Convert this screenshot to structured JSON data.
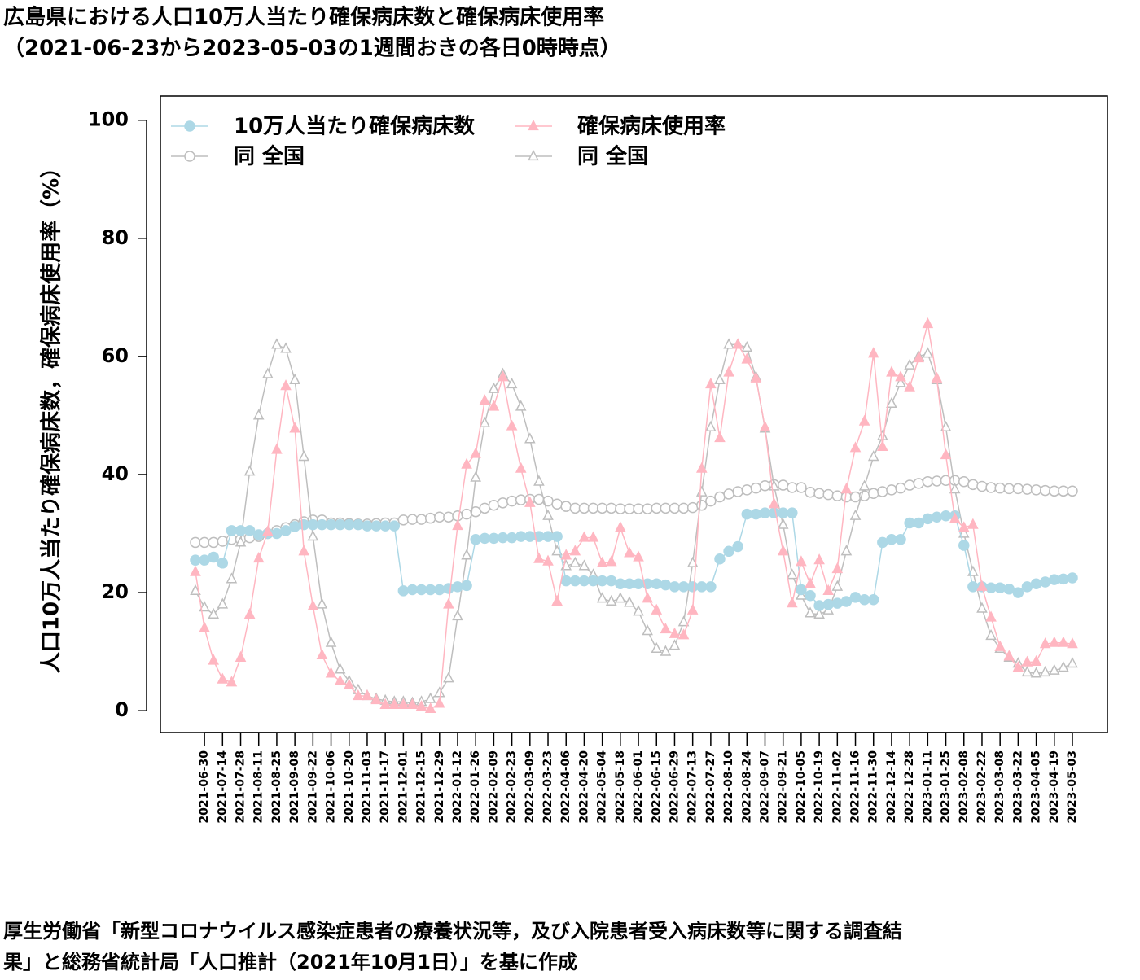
{
  "chart_data": {
    "type": "line",
    "title": "広島県における人口10万人当たり確保病床数と確保病床使用率",
    "subtitle": "（2021-06-23から2023-05-03の1週間おきの各日0時時点）",
    "y_label": "人口10万人当たり確保病床数，確保病床使用率（%）",
    "footnote": [
      "厚生労働省「新型コロナウイルス感染症患者の療養状況等，及び入院患者受入病床数等に関する調査結",
      "果」と総務省統計局「人口推計（2021年10月1日）」を基に作成"
    ],
    "categories": [
      null,
      "2021-06-30",
      null,
      "2021-07-14",
      null,
      "2021-07-28",
      null,
      "2021-08-11",
      null,
      "2021-08-25",
      null,
      "2021-09-08",
      null,
      "2021-09-22",
      null,
      "2021-10-06",
      null,
      "2021-10-20",
      null,
      "2021-11-03",
      null,
      "2021-11-17",
      null,
      "2021-12-01",
      null,
      "2021-12-15",
      null,
      "2021-12-29",
      null,
      "2022-01-12",
      null,
      "2022-01-26",
      null,
      "2022-02-09",
      null,
      "2022-02-23",
      null,
      "2022-03-09",
      null,
      "2022-03-23",
      null,
      "2022-04-06",
      null,
      "2022-04-20",
      null,
      "2022-05-04",
      null,
      "2022-05-18",
      null,
      "2022-06-01",
      null,
      "2022-06-15",
      null,
      "2022-06-29",
      null,
      "2022-07-13",
      null,
      "2022-07-27",
      null,
      "2022-08-10",
      null,
      "2022-08-24",
      null,
      "2022-09-07",
      null,
      "2022-09-21",
      null,
      "2022-10-05",
      null,
      "2022-10-19",
      null,
      "2022-11-02",
      null,
      "2022-11-16",
      null,
      "2022-11-30",
      null,
      "2022-12-14",
      null,
      "2022-12-28",
      null,
      "2023-01-11",
      null,
      "2023-01-25",
      null,
      "2023-02-08",
      null,
      "2023-02-22",
      null,
      "2023-03-08",
      null,
      "2023-03-22",
      null,
      "2023-04-05",
      null,
      "2023-04-19",
      null,
      "2023-05-03"
    ],
    "series": [
      {
        "name": "10万人当たり確保病床数",
        "color": "#add8e6",
        "marker": "circle",
        "filled": true,
        "legend_column": 0,
        "values": [
          25.5,
          25.5,
          26,
          25,
          30.5,
          30.5,
          30.5,
          29.8,
          30,
          30,
          30.5,
          31.2,
          31.5,
          31.5,
          31.5,
          31.5,
          31.5,
          31.5,
          31.5,
          31.3,
          31.3,
          31.3,
          31.3,
          20.3,
          20.5,
          20.5,
          20.5,
          20.5,
          20.7,
          21,
          21.2,
          29,
          29.2,
          29.2,
          29.3,
          29.3,
          29.5,
          29.5,
          29.5,
          29.5,
          29.5,
          22,
          22,
          22,
          22,
          22,
          22,
          21.5,
          21.5,
          21.5,
          21.5,
          21.5,
          21.3,
          21,
          21,
          21,
          21,
          21,
          25.7,
          27,
          27.8,
          33.3,
          33.3,
          33.5,
          33.5,
          33.5,
          33.5,
          20.5,
          19.5,
          17.8,
          18,
          18.2,
          18.5,
          19.2,
          18.8,
          18.8,
          28.5,
          29,
          29,
          31.8,
          31.8,
          32.5,
          32.8,
          33,
          33,
          28,
          21,
          21,
          20.8,
          20.8,
          20.6,
          20,
          21,
          21.5,
          21.8,
          22.2,
          22.3,
          22.5
        ]
      },
      {
        "name": "同 全国",
        "color": "#bebebe",
        "marker": "circle",
        "filled": false,
        "legend_column": 0,
        "values": [
          28.5,
          28.5,
          28.5,
          28.7,
          29,
          29,
          29.3,
          29.5,
          30,
          30.5,
          31,
          31.5,
          32,
          32.3,
          32.3,
          31.8,
          31.8,
          31.7,
          31.6,
          31.6,
          31.7,
          31.8,
          31.8,
          32.3,
          32.4,
          32.4,
          32.6,
          32.8,
          32.8,
          33,
          33.3,
          33.7,
          34.3,
          34.8,
          35.2,
          35.5,
          35.7,
          35.8,
          35.8,
          35.5,
          35,
          34.6,
          34.3,
          34.3,
          34.3,
          34.3,
          34.3,
          34.2,
          34.2,
          34.2,
          34.2,
          34.3,
          34.3,
          34.3,
          34.3,
          34.4,
          34.8,
          35.5,
          36.2,
          36.7,
          37.1,
          37.4,
          37.7,
          38.1,
          38.3,
          38.2,
          37.8,
          37.8,
          37,
          36.8,
          36.6,
          36.4,
          36.2,
          36.2,
          36.4,
          36.8,
          37.1,
          37.4,
          37.7,
          38.2,
          38.5,
          38.8,
          38.9,
          39,
          39,
          38.8,
          38.3,
          38,
          37.8,
          37.7,
          37.6,
          37.6,
          37.5,
          37.4,
          37.3,
          37.2,
          37.2,
          37.2
        ]
      },
      {
        "name": "確保病床使用率",
        "color": "#ffb6c1",
        "marker": "triangle",
        "filled": true,
        "legend_column": 1,
        "values": [
          23.5,
          14,
          8.5,
          5.3,
          4.8,
          9,
          16.3,
          25.8,
          30.3,
          44.2,
          55,
          47.8,
          27,
          17.7,
          9.4,
          6.3,
          5,
          4.3,
          2.5,
          2.5,
          1.8,
          1,
          1,
          1,
          1,
          0.7,
          0.3,
          1.2,
          18,
          31.3,
          41.7,
          43.5,
          52.5,
          51.5,
          56.5,
          48.2,
          41,
          35.2,
          25.7,
          25.3,
          18.5,
          26.3,
          27,
          29.3,
          29.3,
          25,
          25.2,
          31,
          26.7,
          26,
          19,
          17,
          13.8,
          13,
          12.8,
          17,
          41,
          55.3,
          46.2,
          57.3,
          62,
          59.5,
          56.3,
          48,
          35,
          27,
          18.2,
          25.2,
          21.5,
          25.5,
          20.3,
          24,
          37.5,
          44.5,
          49,
          60.5,
          44.7,
          57.3,
          56.5,
          54.8,
          59.7,
          65.5,
          56.3,
          43.3,
          32.5,
          31,
          31.5,
          21,
          15.8,
          10.8,
          9.2,
          7.3,
          8.2,
          8.3,
          11.3,
          11.5,
          11.5,
          11.3
        ]
      },
      {
        "name": "同 全国",
        "color": "#bebebe",
        "marker": "triangle",
        "filled": false,
        "legend_column": 1,
        "values": [
          20.3,
          17.5,
          16.3,
          18,
          22.3,
          28.5,
          40.5,
          50,
          57,
          62,
          61.3,
          56,
          43,
          29.5,
          18,
          11.5,
          7,
          5,
          3.5,
          2.5,
          2,
          1.7,
          1.5,
          1.5,
          1.3,
          1.5,
          2,
          3,
          5.5,
          16,
          26.3,
          39.5,
          48.7,
          54.5,
          57,
          55.3,
          51.5,
          46,
          38.8,
          33,
          27,
          24.5,
          25,
          24.5,
          23,
          19,
          18.5,
          19,
          18.3,
          16.8,
          13.5,
          10.5,
          10,
          11,
          15,
          25,
          37,
          48,
          56,
          62,
          62,
          61.5,
          56.5,
          47.8,
          38,
          31.5,
          23,
          19.5,
          16.5,
          16.3,
          17,
          21,
          27,
          33,
          38,
          43,
          46.5,
          52,
          55.5,
          58.5,
          60,
          60.5,
          56,
          48,
          37.5,
          30,
          23.5,
          17.3,
          12.7,
          10.5,
          9,
          8,
          6.5,
          6.3,
          6.5,
          6.8,
          7.3,
          8
        ]
      }
    ],
    "ylim": [
      -3.7,
      104.1
    ],
    "yticks": [
      0,
      20,
      40,
      60,
      80,
      100
    ],
    "grid": false,
    "legend": "top-left"
  }
}
